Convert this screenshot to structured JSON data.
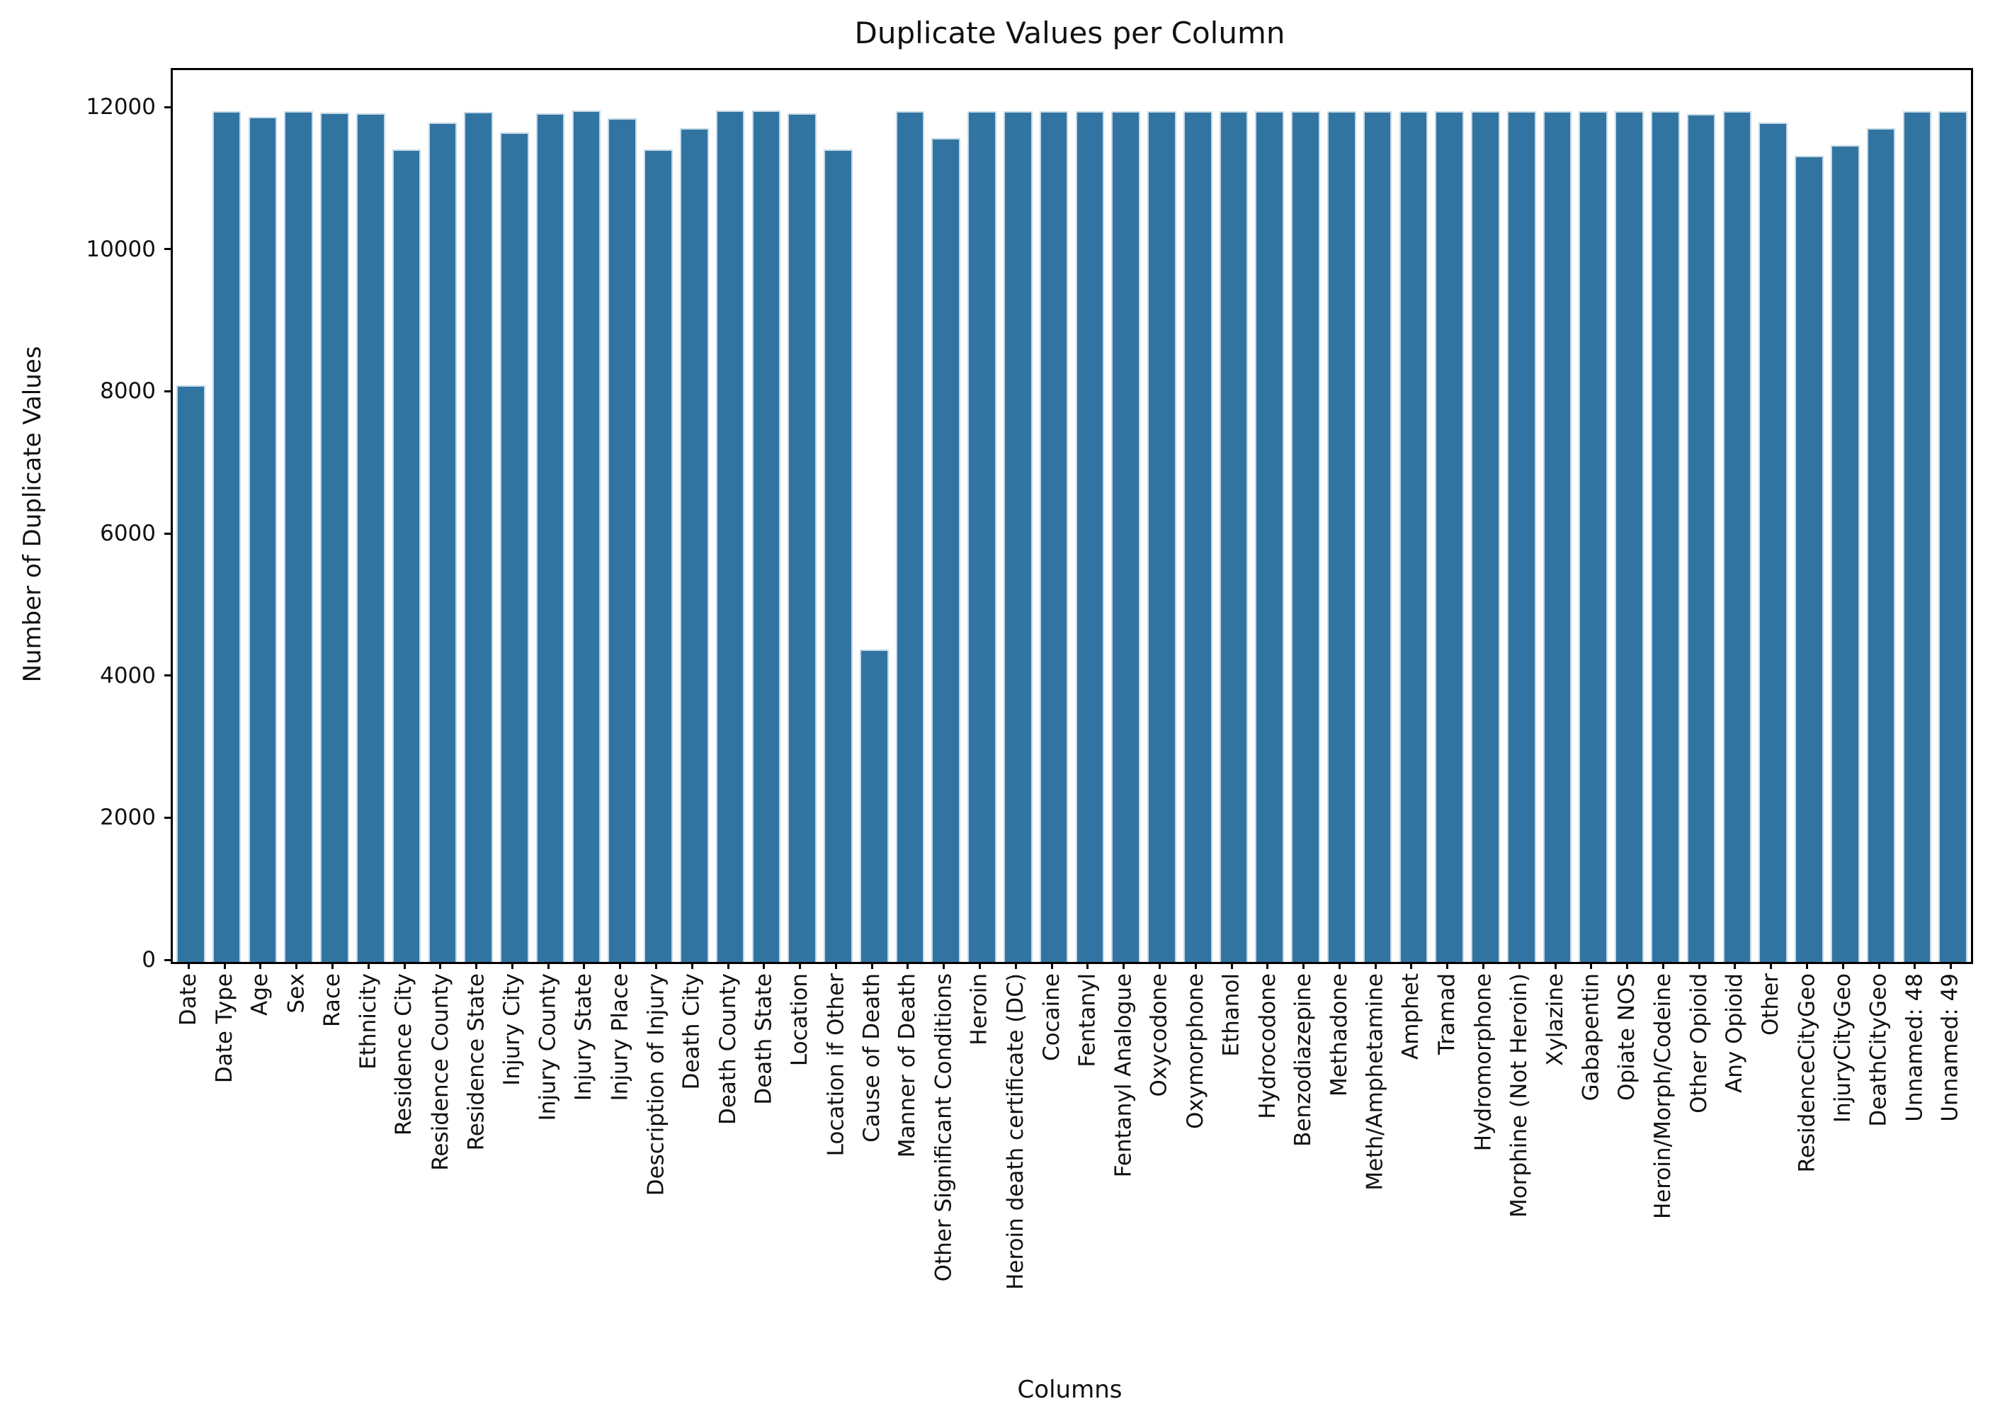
{
  "chart_data": {
    "type": "bar",
    "title": "Duplicate Values per Column",
    "xlabel": "Columns",
    "ylabel": "Number of Duplicate Values",
    "bar_color": "#3274a1",
    "bar_edge_color": "#c4d8e6",
    "grid": false,
    "legend": "none",
    "ylim": [
      0,
      12550
    ],
    "yticks": [
      0,
      2000,
      4000,
      6000,
      8000,
      10000,
      12000
    ],
    "categories": [
      "Date",
      "Date Type",
      "Age",
      "Sex",
      "Race",
      "Ethnicity",
      "Residence City",
      "Residence County",
      "Residence State",
      "Injury City",
      "Injury County",
      "Injury State",
      "Injury Place",
      "Description of Injury",
      "Death City",
      "Death County",
      "Death State",
      "Location",
      "Location if Other",
      "Cause of Death",
      "Manner of Death",
      "Other Significant Conditions",
      "Heroin",
      "Heroin death certificate (DC)",
      "Cocaine",
      "Fentanyl",
      "Fentanyl Analogue",
      "Oxycodone",
      "Oxymorphone",
      "Ethanol",
      "Hydrocodone",
      "Benzodiazepine",
      "Methadone",
      "Meth/Amphetamine",
      "Amphet",
      "Tramad",
      "Hydromorphone",
      "Morphine (Not Heroin)",
      "Xylazine",
      "Gabapentin",
      "Opiate NOS",
      "Heroin/Morph/Codeine",
      "Other Opioid",
      "Any Opioid",
      "Other",
      "ResidenceCityGeo",
      "InjuryCityGeo",
      "DeathCityGeo",
      "Unnamed: 48",
      "Unnamed: 49"
    ],
    "values": [
      8110,
      11975,
      11890,
      11975,
      11950,
      11945,
      11435,
      11810,
      11960,
      11670,
      11940,
      11980,
      11875,
      11435,
      11730,
      11980,
      11980,
      11945,
      11435,
      4400,
      11975,
      11595,
      11975,
      11975,
      11975,
      11975,
      11975,
      11975,
      11975,
      11975,
      11975,
      11975,
      11975,
      11975,
      11975,
      11975,
      11975,
      11975,
      11975,
      11975,
      11975,
      11975,
      11935,
      11975,
      11810,
      11345,
      11490,
      11730,
      11975,
      11975
    ]
  }
}
